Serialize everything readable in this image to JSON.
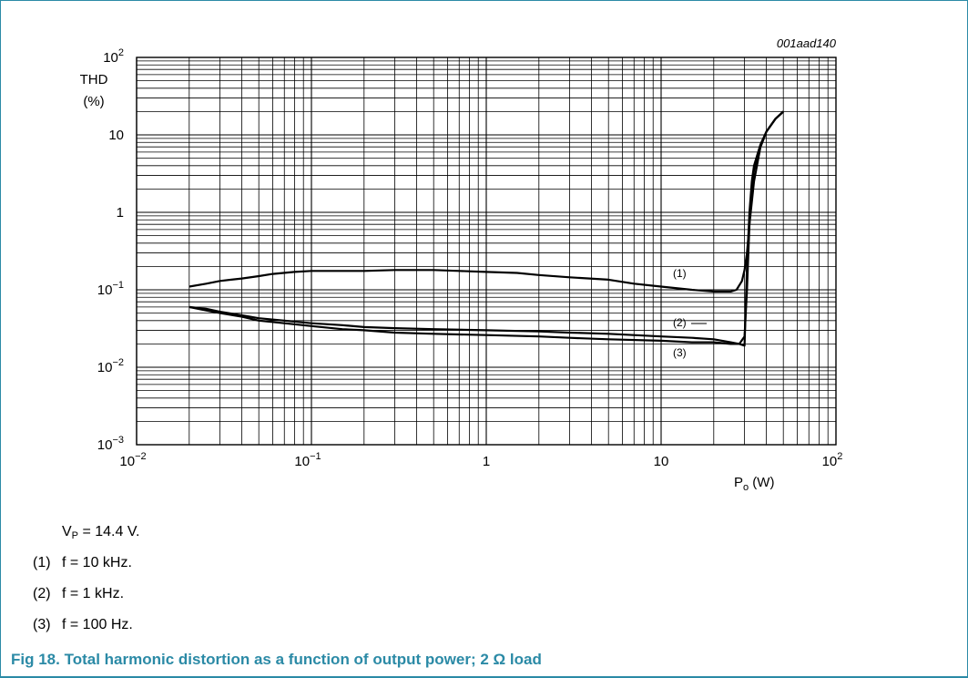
{
  "figure_code": "001aad140",
  "y_axis": {
    "label_line1": "THD",
    "label_line2": "(%)"
  },
  "x_axis": {
    "label_main": "P",
    "label_sub": "o",
    "label_unit": " (W)"
  },
  "chart_data": {
    "type": "line",
    "title": "",
    "xlabel": "Po (W)",
    "ylabel": "THD (%)",
    "xscale": "log",
    "yscale": "log",
    "xlim": [
      0.01,
      100
    ],
    "ylim": [
      0.001,
      100
    ],
    "grid": true,
    "x_ticks": [
      {
        "base": "10",
        "exp": "−2"
      },
      {
        "base": "10",
        "exp": "−1"
      },
      {
        "base": "1",
        "exp": ""
      },
      {
        "base": "10",
        "exp": ""
      },
      {
        "base": "10",
        "exp": "2"
      }
    ],
    "y_ticks": [
      {
        "base": "10",
        "exp": "−3"
      },
      {
        "base": "10",
        "exp": "−2"
      },
      {
        "base": "10",
        "exp": "−1"
      },
      {
        "base": "1",
        "exp": ""
      },
      {
        "base": "10",
        "exp": ""
      },
      {
        "base": "10",
        "exp": "2"
      }
    ],
    "series": [
      {
        "name": "(1)",
        "x": [
          0.02,
          0.025,
          0.03,
          0.04,
          0.05,
          0.06,
          0.08,
          0.1,
          0.15,
          0.2,
          0.3,
          0.5,
          0.7,
          1,
          1.5,
          2,
          3,
          5,
          7,
          10,
          15,
          20,
          25,
          27,
          29,
          30,
          31,
          32,
          34,
          37,
          40,
          45,
          50
        ],
        "y": [
          0.11,
          0.12,
          0.13,
          0.14,
          0.15,
          0.16,
          0.17,
          0.175,
          0.175,
          0.175,
          0.18,
          0.18,
          0.175,
          0.17,
          0.165,
          0.155,
          0.145,
          0.135,
          0.12,
          0.11,
          0.1,
          0.095,
          0.095,
          0.1,
          0.13,
          0.18,
          0.3,
          0.7,
          2.5,
          7,
          11,
          16,
          20
        ]
      },
      {
        "name": "(2)",
        "x": [
          0.02,
          0.025,
          0.03,
          0.04,
          0.05,
          0.07,
          0.1,
          0.15,
          0.2,
          0.3,
          0.5,
          1,
          2,
          3,
          5,
          10,
          15,
          20,
          25,
          28,
          30,
          31,
          32,
          33,
          34,
          37,
          40,
          45,
          50
        ],
        "y": [
          0.06,
          0.057,
          0.052,
          0.047,
          0.043,
          0.04,
          0.037,
          0.035,
          0.033,
          0.032,
          0.031,
          0.03,
          0.029,
          0.028,
          0.027,
          0.025,
          0.024,
          0.023,
          0.021,
          0.02,
          0.025,
          0.1,
          0.7,
          2,
          3.5,
          7,
          11,
          16,
          20
        ]
      },
      {
        "name": "(3)",
        "x": [
          0.02,
          0.025,
          0.03,
          0.04,
          0.05,
          0.07,
          0.1,
          0.15,
          0.2,
          0.3,
          0.5,
          1,
          2,
          3,
          5,
          10,
          15,
          20,
          25,
          28,
          30,
          31,
          32,
          33,
          34,
          37,
          40,
          45,
          50
        ],
        "y": [
          0.06,
          0.054,
          0.05,
          0.045,
          0.04,
          0.037,
          0.034,
          0.031,
          0.03,
          0.028,
          0.027,
          0.026,
          0.025,
          0.024,
          0.023,
          0.022,
          0.021,
          0.021,
          0.02,
          0.02,
          0.019,
          0.2,
          1,
          2.5,
          4,
          7.5,
          11,
          16,
          20
        ]
      }
    ]
  },
  "notes": {
    "vp_prefix": "V",
    "vp_sub": "P",
    "vp_rest": " = 14.4 V.",
    "items": [
      {
        "num": "(1)",
        "text": "f = 10 kHz."
      },
      {
        "num": "(2)",
        "text": "f = 1 kHz."
      },
      {
        "num": "(3)",
        "text": "f = 100 Hz."
      }
    ]
  },
  "caption": "Fig 18. Total harmonic distortion as a function of output power; 2 Ω load"
}
